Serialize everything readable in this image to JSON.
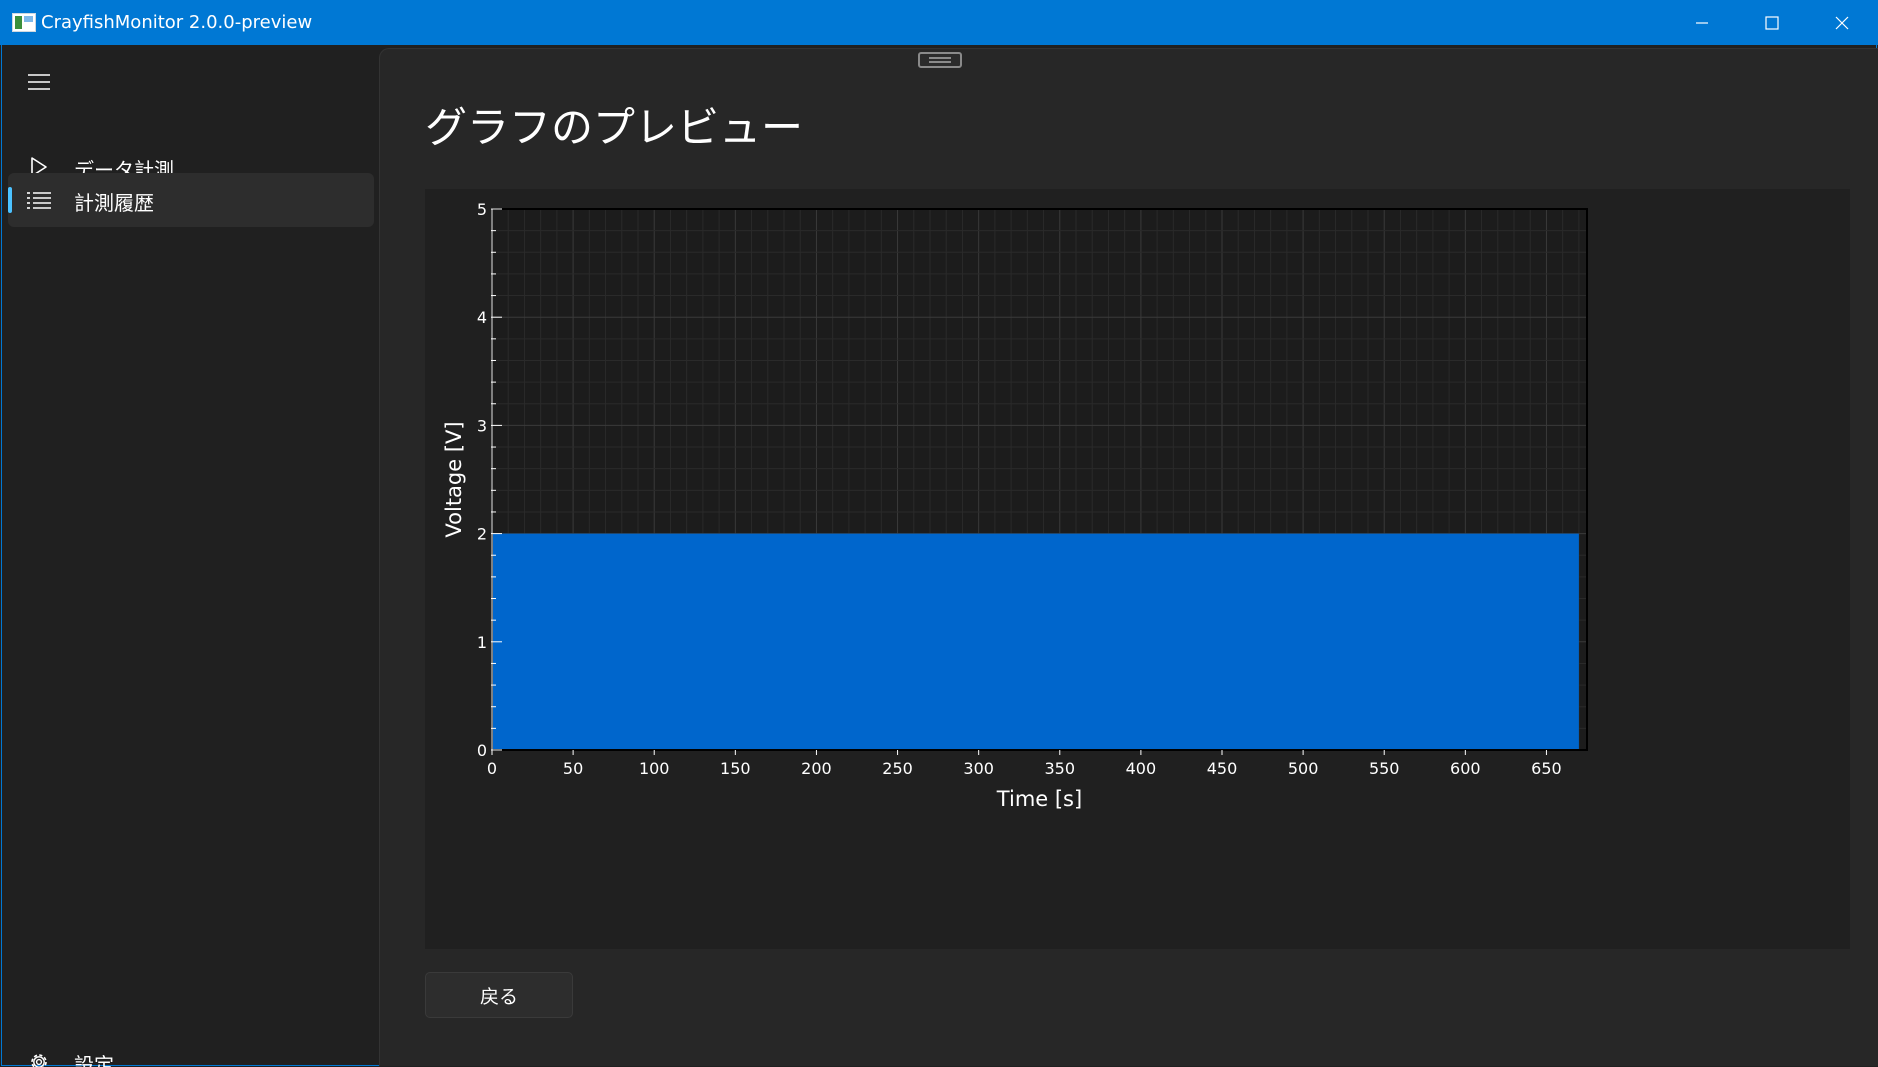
{
  "window": {
    "title": "CrayfishMonitor 2.0.0-preview",
    "minimize_icon": "minimize-icon",
    "maximize_icon": "maximize-icon",
    "close_icon": "close-icon"
  },
  "nav": {
    "toggle_icon": "hamburger-menu-icon",
    "items": [
      {
        "label": "データ計測",
        "icon": "play-icon",
        "selected": false
      },
      {
        "label": "計測履歴",
        "icon": "list-icon",
        "selected": true
      }
    ],
    "settings": {
      "label": "設定",
      "icon": "gear-icon"
    }
  },
  "page": {
    "title": "グラフのプレビュー",
    "back_label": "戻る"
  },
  "colors": {
    "accent": "#0078d4",
    "series": "#0066cc",
    "selection_indicator": "#4cc2ff"
  },
  "chart_data": {
    "type": "area",
    "xlabel": "Time [s]",
    "ylabel": "Voltage [V]",
    "xlim": [
      0,
      675
    ],
    "ylim": [
      0,
      5
    ],
    "x_ticks": [
      0,
      50,
      100,
      150,
      200,
      250,
      300,
      350,
      400,
      450,
      500,
      550,
      600,
      650
    ],
    "y_ticks": [
      0,
      1,
      2,
      3,
      4,
      5
    ],
    "grid": true,
    "series": [
      {
        "x": [
          0,
          670
        ],
        "values": [
          2,
          2
        ]
      }
    ]
  }
}
